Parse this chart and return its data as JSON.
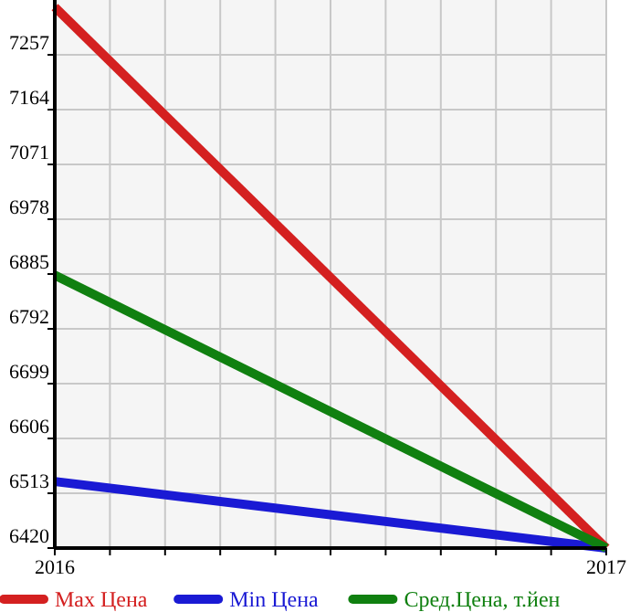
{
  "chart_data": {
    "type": "line",
    "x": [
      2016,
      2017
    ],
    "series": [
      {
        "name": "Max Цена",
        "color": "#d42020",
        "values": [
          7338,
          6420
        ]
      },
      {
        "name": "Min Цена",
        "color": "#1a1ad4",
        "values": [
          6533,
          6420
        ]
      },
      {
        "name": "Сред.Цена, т.йен",
        "color": "#108010",
        "values": [
          6883,
          6420
        ]
      }
    ],
    "xlim": [
      2016,
      2017
    ],
    "xticks": [
      2016,
      {
        "value": 2016.1,
        "label": null
      },
      {
        "value": 2016.2,
        "label": null
      },
      {
        "value": 2016.3,
        "label": null
      },
      {
        "value": 2016.4,
        "label": null
      },
      {
        "value": 2016.5,
        "label": null
      },
      {
        "value": 2016.6,
        "label": null
      },
      {
        "value": 2016.7,
        "label": null
      },
      {
        "value": 2016.8,
        "label": null
      },
      {
        "value": 2016.9,
        "label": null
      },
      2017
    ],
    "ylim": [
      6420,
      7350
    ],
    "yticks": [
      6420,
      6513,
      6606,
      6699,
      6792,
      6885,
      6978,
      7071,
      7164,
      7257
    ],
    "grid": true,
    "legend": "bottom",
    "marker": "none",
    "line_style": "solid"
  }
}
